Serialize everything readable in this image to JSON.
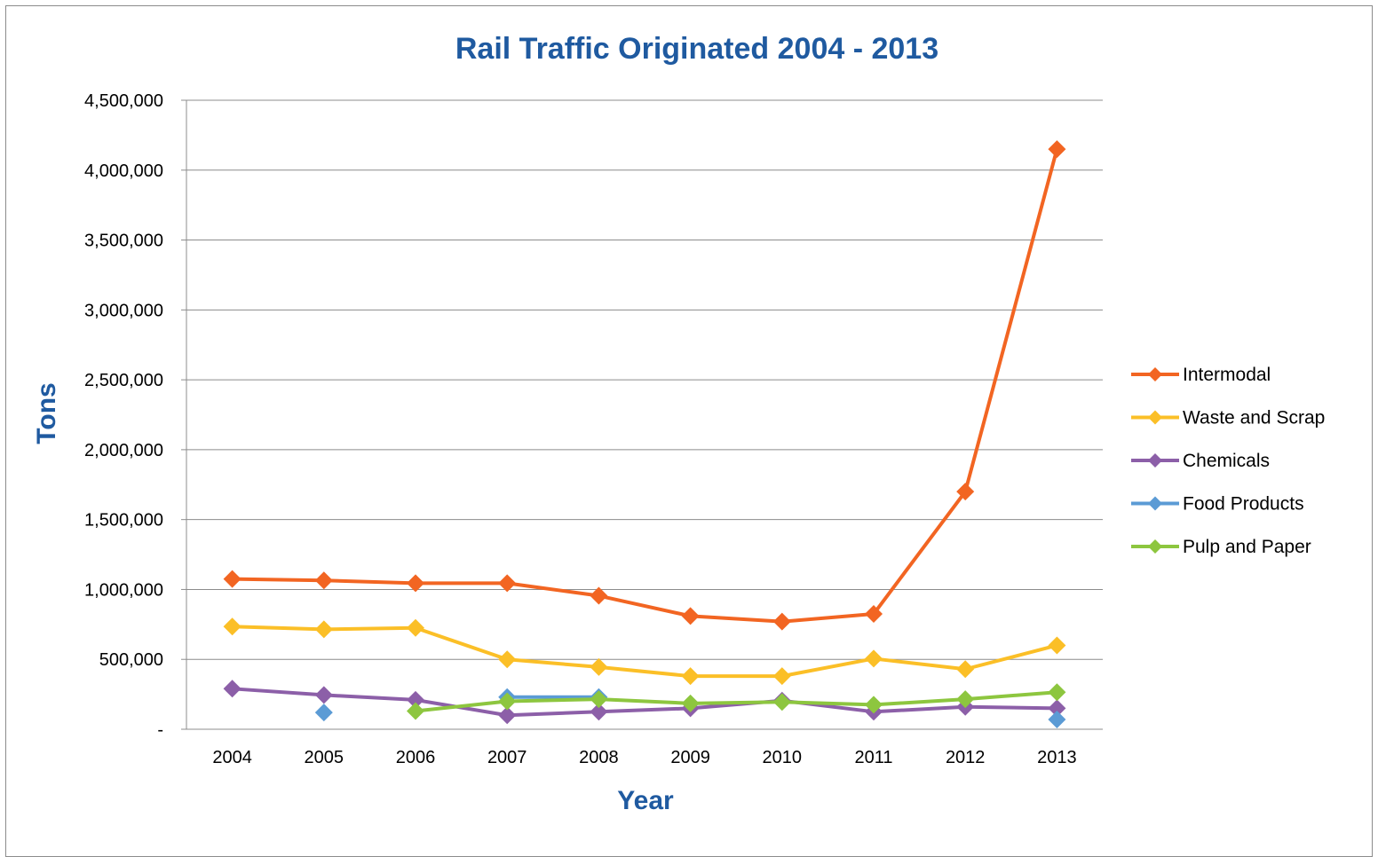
{
  "chart_data": {
    "type": "line",
    "title": "Rail Traffic Originated 2004 - 2013",
    "xlabel": "Year",
    "ylabel": "Tons",
    "categories": [
      "2004",
      "2005",
      "2006",
      "2007",
      "2008",
      "2009",
      "2010",
      "2011",
      "2012",
      "2013"
    ],
    "yticks": [
      "-",
      "500,000",
      "1,000,000",
      "1,500,000",
      "2,000,000",
      "2,500,000",
      "3,000,000",
      "3,500,000",
      "4,000,000",
      "4,500,000"
    ],
    "ylim": [
      0,
      4500000
    ],
    "grid": true,
    "legend_position": "right",
    "series": [
      {
        "name": "Intermodal",
        "color": "#f26522",
        "values": [
          1075000,
          1065000,
          1045000,
          1045000,
          955000,
          810000,
          770000,
          825000,
          1700000,
          4150000
        ]
      },
      {
        "name": "Waste and Scrap",
        "color": "#fbbf27",
        "values": [
          735000,
          715000,
          725000,
          500000,
          445000,
          380000,
          380000,
          505000,
          430000,
          600000
        ]
      },
      {
        "name": "Chemicals",
        "color": "#8c5fa8",
        "values": [
          290000,
          245000,
          210000,
          100000,
          125000,
          150000,
          205000,
          125000,
          160000,
          150000
        ]
      },
      {
        "name": "Food Products",
        "color": "#5b9bd5",
        "values": [
          null,
          120000,
          null,
          230000,
          230000,
          null,
          null,
          null,
          null,
          70000
        ]
      },
      {
        "name": "Pulp and Paper",
        "color": "#8dc63f",
        "values": [
          null,
          null,
          130000,
          200000,
          215000,
          185000,
          195000,
          175000,
          215000,
          265000
        ]
      }
    ]
  }
}
